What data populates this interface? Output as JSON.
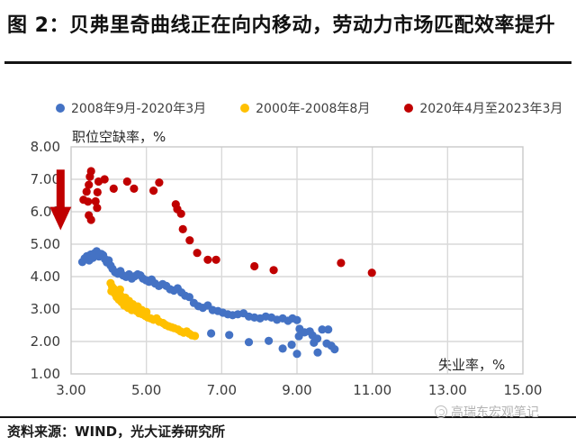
{
  "header": {
    "title": "图 2：贝弗里奇曲线正在向内移动，劳动力市场匹配效率提升"
  },
  "footer": {
    "source": "资料来源：WIND，光大证券研究所",
    "watermark": "高瑞东宏观笔记"
  },
  "colors": {
    "series_blue": "#4472C4",
    "series_yellow": "#FFC000",
    "series_red": "#C00000",
    "grid": "#D9D9D9",
    "plot_border": "#C9C9C9",
    "tick_text": "#3b3b3b",
    "arrow": "#C00000"
  },
  "chart_data": {
    "type": "scatter",
    "title": "",
    "xlabel": "失业率，%",
    "ylabel": "职位空缺率，%",
    "xlim": [
      3,
      15
    ],
    "ylim": [
      1,
      8
    ],
    "x_ticks": [
      "3.00",
      "5.00",
      "7.00",
      "9.00",
      "11.00",
      "13.00",
      "15.00"
    ],
    "y_ticks": [
      "8.00",
      "7.00",
      "6.00",
      "5.00",
      "4.00",
      "3.00",
      "2.00",
      "1.00"
    ],
    "grid": true,
    "legend_position": "top",
    "annotation": {
      "shape": "down-arrow",
      "color": "#C00000",
      "x": 2.72,
      "y_from": 7.3,
      "y_shaft_end": 6.15,
      "y_tip": 5.82
    },
    "series": [
      {
        "name": "2008年9月-2020年3月",
        "color": "#4472C4",
        "points": [
          [
            3.3,
            4.45
          ],
          [
            3.36,
            4.56
          ],
          [
            3.42,
            4.63
          ],
          [
            3.48,
            4.5
          ],
          [
            3.52,
            4.68
          ],
          [
            3.58,
            4.58
          ],
          [
            3.62,
            4.72
          ],
          [
            3.68,
            4.78
          ],
          [
            3.74,
            4.62
          ],
          [
            3.8,
            4.7
          ],
          [
            3.85,
            4.66
          ],
          [
            3.9,
            4.54
          ],
          [
            3.95,
            4.44
          ],
          [
            4.0,
            4.5
          ],
          [
            4.05,
            4.34
          ],
          [
            4.1,
            4.24
          ],
          [
            4.17,
            4.14
          ],
          [
            4.24,
            4.09
          ],
          [
            4.31,
            4.17
          ],
          [
            4.38,
            4.04
          ],
          [
            4.46,
            3.99
          ],
          [
            4.54,
            4.07
          ],
          [
            4.61,
            3.94
          ],
          [
            4.69,
            4.01
          ],
          [
            4.77,
            4.07
          ],
          [
            4.84,
            4.04
          ],
          [
            4.91,
            3.94
          ],
          [
            4.99,
            3.89
          ],
          [
            5.07,
            3.84
          ],
          [
            5.14,
            3.91
          ],
          [
            5.23,
            3.79
          ],
          [
            5.33,
            3.71
          ],
          [
            5.43,
            3.77
          ],
          [
            5.53,
            3.71
          ],
          [
            5.63,
            3.61
          ],
          [
            5.73,
            3.57
          ],
          [
            5.83,
            3.64
          ],
          [
            5.93,
            3.51
          ],
          [
            6.03,
            3.41
          ],
          [
            6.14,
            3.37
          ],
          [
            6.26,
            3.19
          ],
          [
            6.38,
            3.09
          ],
          [
            6.5,
            3.04
          ],
          [
            6.63,
            3.11
          ],
          [
            6.76,
            2.97
          ],
          [
            6.9,
            2.94
          ],
          [
            7.03,
            2.89
          ],
          [
            7.16,
            2.84
          ],
          [
            7.29,
            2.81
          ],
          [
            7.43,
            2.84
          ],
          [
            7.58,
            2.87
          ],
          [
            7.72,
            2.77
          ],
          [
            7.87,
            2.74
          ],
          [
            8.02,
            2.71
          ],
          [
            8.17,
            2.77
          ],
          [
            8.32,
            2.74
          ],
          [
            8.47,
            2.67
          ],
          [
            8.62,
            2.71
          ],
          [
            8.76,
            2.64
          ],
          [
            8.88,
            2.71
          ],
          [
            9.0,
            2.66
          ],
          [
            8.86,
            1.9
          ],
          [
            9.05,
            2.16
          ],
          [
            9.07,
            2.39
          ],
          [
            9.2,
            2.28
          ],
          [
            9.34,
            2.31
          ],
          [
            9.41,
            2.19
          ],
          [
            9.45,
            1.96
          ],
          [
            9.54,
            2.09
          ],
          [
            9.55,
            1.66
          ],
          [
            9.67,
            2.37
          ],
          [
            9.83,
            2.37
          ],
          [
            9.79,
            1.94
          ],
          [
            9.91,
            1.87
          ],
          [
            10.0,
            1.76
          ],
          [
            6.72,
            2.25
          ],
          [
            7.2,
            2.2
          ],
          [
            7.72,
            1.98
          ],
          [
            8.25,
            2.02
          ],
          [
            8.62,
            1.78
          ],
          [
            9.0,
            1.62
          ]
        ]
      },
      {
        "name": "2000年-2008年8月",
        "color": "#FFC000",
        "points": [
          [
            4.05,
            3.8
          ],
          [
            4.09,
            3.69
          ],
          [
            4.07,
            3.55
          ],
          [
            4.14,
            3.62
          ],
          [
            4.17,
            3.47
          ],
          [
            4.21,
            3.37
          ],
          [
            4.24,
            3.52
          ],
          [
            4.27,
            3.29
          ],
          [
            4.31,
            3.42
          ],
          [
            4.34,
            3.21
          ],
          [
            4.3,
            3.6
          ],
          [
            4.39,
            3.28
          ],
          [
            4.41,
            3.11
          ],
          [
            4.44,
            3.35
          ],
          [
            4.47,
            3.18
          ],
          [
            4.51,
            3.04
          ],
          [
            4.54,
            3.25
          ],
          [
            4.57,
            3.1
          ],
          [
            4.61,
            2.97
          ],
          [
            4.64,
            3.15
          ],
          [
            4.67,
            3.04
          ],
          [
            4.74,
            2.94
          ],
          [
            4.77,
            3.08
          ],
          [
            4.81,
            2.87
          ],
          [
            4.88,
            2.97
          ],
          [
            4.89,
            2.84
          ],
          [
            4.97,
            2.79
          ],
          [
            5.0,
            2.91
          ],
          [
            5.04,
            2.74
          ],
          [
            5.11,
            2.71
          ],
          [
            5.19,
            2.67
          ],
          [
            5.27,
            2.71
          ],
          [
            5.34,
            2.61
          ],
          [
            5.44,
            2.57
          ],
          [
            5.51,
            2.51
          ],
          [
            5.59,
            2.47
          ],
          [
            5.67,
            2.44
          ],
          [
            5.74,
            2.41
          ],
          [
            5.84,
            2.37
          ],
          [
            5.91,
            2.31
          ],
          [
            5.99,
            2.27
          ],
          [
            6.07,
            2.31
          ],
          [
            6.14,
            2.24
          ],
          [
            6.21,
            2.19
          ],
          [
            6.29,
            2.17
          ]
        ]
      },
      {
        "name": "2020年4月至2023年3月",
        "color": "#C00000",
        "points": [
          [
            3.53,
            7.25
          ],
          [
            3.5,
            7.08
          ],
          [
            3.47,
            6.83
          ],
          [
            3.73,
            6.93
          ],
          [
            3.89,
            7.0
          ],
          [
            4.13,
            6.71
          ],
          [
            3.41,
            6.62
          ],
          [
            3.7,
            6.6
          ],
          [
            3.33,
            6.37
          ],
          [
            3.45,
            6.31
          ],
          [
            3.65,
            6.32
          ],
          [
            3.69,
            6.12
          ],
          [
            3.47,
            5.89
          ],
          [
            3.53,
            5.75
          ],
          [
            4.49,
            6.93
          ],
          [
            4.67,
            6.71
          ],
          [
            5.19,
            6.65
          ],
          [
            5.34,
            6.9
          ],
          [
            5.78,
            6.23
          ],
          [
            5.82,
            6.08
          ],
          [
            5.92,
            5.94
          ],
          [
            5.97,
            5.46
          ],
          [
            6.15,
            5.12
          ],
          [
            6.35,
            4.73
          ],
          [
            6.63,
            4.52
          ],
          [
            6.85,
            4.52
          ],
          [
            7.87,
            4.32
          ],
          [
            8.38,
            4.2
          ],
          [
            10.17,
            4.42
          ],
          [
            10.99,
            4.12
          ]
        ]
      }
    ]
  }
}
